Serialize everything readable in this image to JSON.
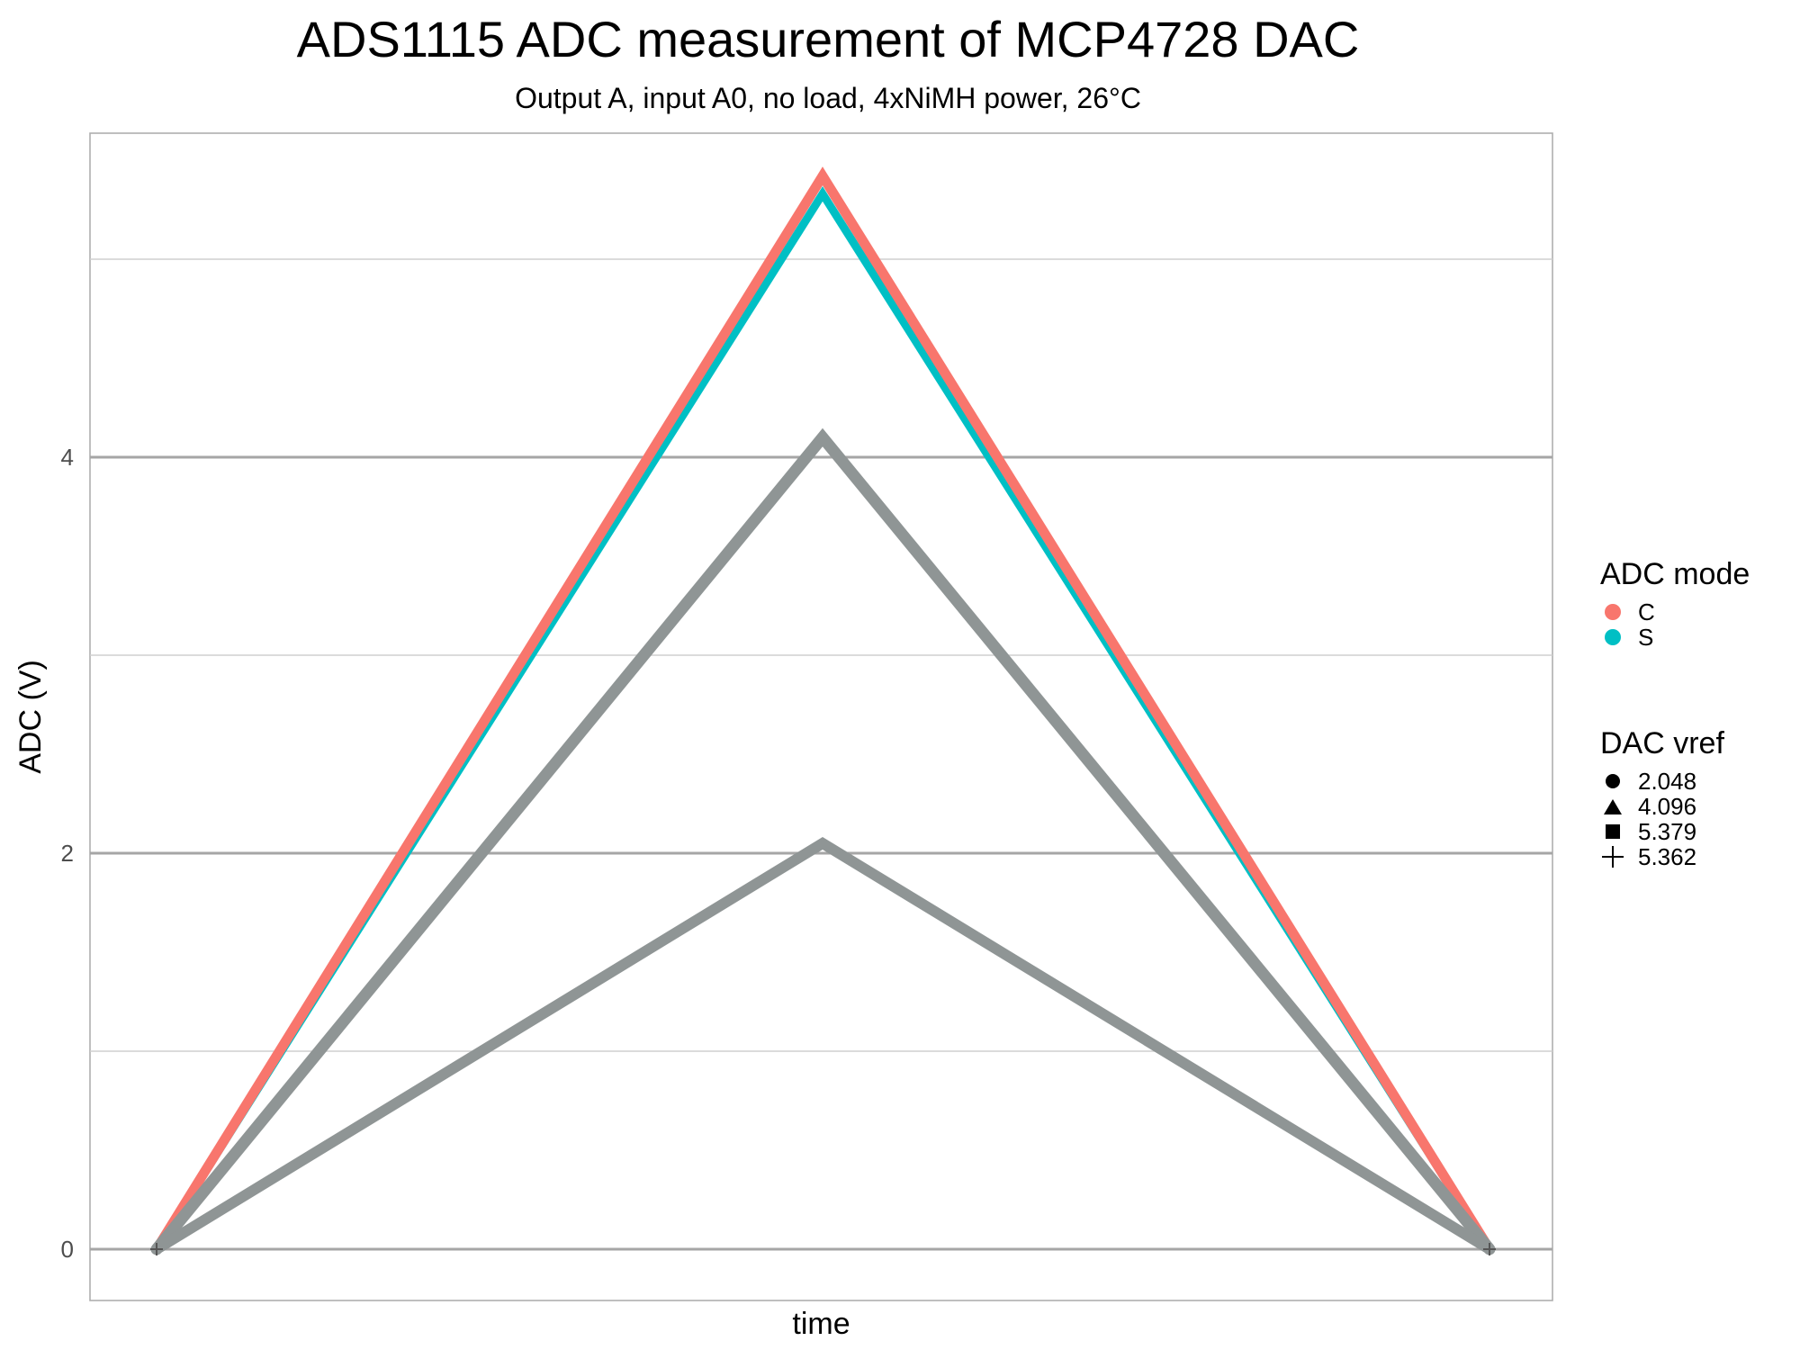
{
  "chart_data": {
    "type": "line",
    "title": "ADS1115 ADC measurement of MCP4728 DAC",
    "subtitle": "Output A, input A0, no load, 4xNiMH power, 26°C",
    "xlabel": "time",
    "ylabel": "ADC (V)",
    "x": [
      0,
      1,
      2
    ],
    "ylim": [
      -0.25,
      5.65
    ],
    "yticks": [
      0,
      2,
      4
    ],
    "ytick_labels": [
      "0",
      "2",
      "4"
    ],
    "grid": true,
    "legend_placement": "right",
    "colors": {
      "C": "#F8766D",
      "S": "#00BFC4",
      "grey": "#8F9595",
      "frame": "#AFAFAF",
      "major_grid": "#A6A6A6",
      "minor_grid": "#CFCFCF"
    },
    "series": [
      {
        "mode": "S",
        "vref": "5.379",
        "values": [
          0,
          5.33,
          0
        ],
        "color": "#00BFC4"
      },
      {
        "mode": "C",
        "vref": "5.362",
        "values": [
          0,
          5.42,
          0
        ],
        "color": "#F8766D"
      },
      {
        "mode": "C",
        "vref": "4.096",
        "values": [
          0,
          4.1,
          0
        ],
        "color": "#8F9595"
      },
      {
        "mode": "S",
        "vref": "2.048",
        "values": [
          0,
          2.05,
          0
        ],
        "color": "#8F9595"
      }
    ],
    "legend": {
      "color_title": "ADC mode",
      "color_items": [
        {
          "label": "C",
          "color": "#F8766D"
        },
        {
          "label": "S",
          "color": "#00BFC4"
        }
      ],
      "shape_title": "DAC vref",
      "shape_items": [
        {
          "label": "2.048",
          "shape": "circle"
        },
        {
          "label": "4.096",
          "shape": "triangle"
        },
        {
          "label": "5.379",
          "shape": "square"
        },
        {
          "label": "5.362",
          "shape": "plus"
        }
      ]
    }
  }
}
